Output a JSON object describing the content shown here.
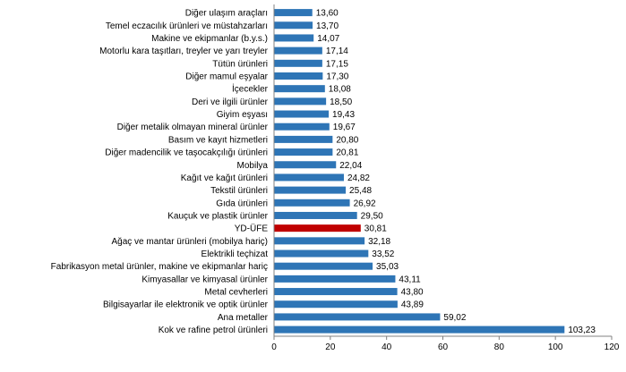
{
  "chart_data": {
    "type": "bar",
    "orientation": "horizontal",
    "categories": [
      "Diğer ulaşım araçları",
      "Temel eczacılık ürünleri ve müstahzarları",
      "Makine ve ekipmanlar (b.y.s.)",
      "Motorlu kara taşıtları, treyler ve yarı treyler",
      "Tütün ürünleri",
      "Diğer mamul eşyalar",
      "İçecekler",
      "Deri ve ilgili ürünler",
      "Giyim eşyası",
      "Diğer metalik olmayan mineral ürünler",
      "Basım ve kayıt hizmetleri",
      "Diğer madencilik ve taşocakçılığı ürünleri",
      "Mobilya",
      "Kağıt ve kağıt ürünleri",
      "Tekstil ürünleri",
      "Gıda ürünleri",
      "Kauçuk ve plastik ürünler",
      "YD-ÜFE",
      "Ağaç ve mantar ürünleri (mobilya hariç)",
      "Elektrikli teçhizat",
      "Fabrikasyon metal ürünler, makine ve ekipmanlar hariç",
      "Kimyasallar ve kimyasal ürünler",
      "Metal cevherleri",
      "Bilgisayarlar ile elektronik ve optik ürünler",
      "Ana metaller",
      "Kok ve rafine petrol ürünleri"
    ],
    "values": [
      13.6,
      13.7,
      14.07,
      17.14,
      17.15,
      17.3,
      18.08,
      18.5,
      19.43,
      19.67,
      20.8,
      20.81,
      22.04,
      24.82,
      25.48,
      26.92,
      29.5,
      30.81,
      32.18,
      33.52,
      35.03,
      43.11,
      43.8,
      43.89,
      59.02,
      103.23
    ],
    "value_labels": [
      "13,60",
      "13,70",
      "14,07",
      "17,14",
      "17,15",
      "17,30",
      "18,08",
      "18,50",
      "19,43",
      "19,67",
      "20,80",
      "20,81",
      "22,04",
      "24,82",
      "25,48",
      "26,92",
      "29,50",
      "30,81",
      "32,18",
      "33,52",
      "35,03",
      "43,11",
      "43,80",
      "43,89",
      "59,02",
      "103,23"
    ],
    "highlight_index": 17,
    "xlim": [
      0,
      120
    ],
    "xticks": [
      0,
      20,
      40,
      60,
      80,
      100,
      120
    ],
    "grid": false,
    "colors": {
      "bar": "#2E75B6",
      "highlight": "#C00000",
      "axis": "#808080"
    }
  }
}
